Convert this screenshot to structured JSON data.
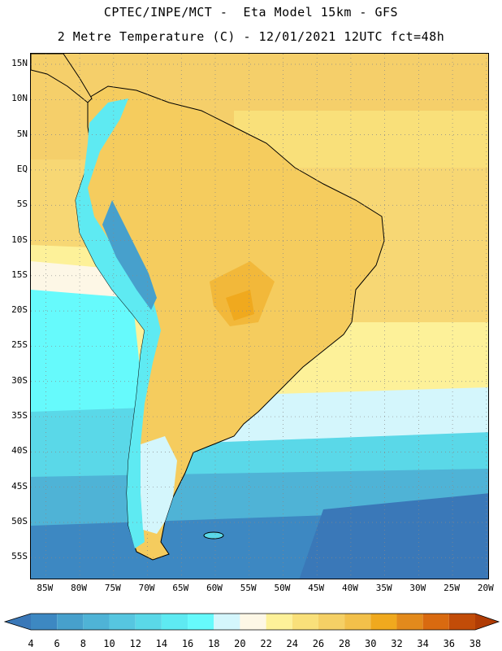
{
  "header": {
    "title_line1": "CPTEC/INPE/MCT -  Eta Model 15km - GFS",
    "title_line2": "2 Metre Temperature (C) - 12/01/2021 12UTC fct=48h"
  },
  "map": {
    "latitudes": [
      {
        "label": "15N",
        "value": 15
      },
      {
        "label": "10N",
        "value": 10
      },
      {
        "label": "5N",
        "value": 5
      },
      {
        "label": "EQ",
        "value": 0
      },
      {
        "label": "5S",
        "value": -5
      },
      {
        "label": "10S",
        "value": -10
      },
      {
        "label": "15S",
        "value": -15
      },
      {
        "label": "20S",
        "value": -20
      },
      {
        "label": "25S",
        "value": -25
      },
      {
        "label": "30S",
        "value": -30
      },
      {
        "label": "35S",
        "value": -35
      },
      {
        "label": "40S",
        "value": -40
      },
      {
        "label": "45S",
        "value": -45
      },
      {
        "label": "50S",
        "value": -50
      },
      {
        "label": "55S",
        "value": -55
      }
    ],
    "longitudes": [
      {
        "label": "85W",
        "value": -85
      },
      {
        "label": "80W",
        "value": -80
      },
      {
        "label": "75W",
        "value": -75
      },
      {
        "label": "70W",
        "value": -70
      },
      {
        "label": "65W",
        "value": -65
      },
      {
        "label": "60W",
        "value": -60
      },
      {
        "label": "55W",
        "value": -55
      },
      {
        "label": "50W",
        "value": -50
      },
      {
        "label": "45W",
        "value": -45
      },
      {
        "label": "40W",
        "value": -40
      },
      {
        "label": "35W",
        "value": -35
      },
      {
        "label": "30W",
        "value": -30
      },
      {
        "label": "25W",
        "value": -25
      },
      {
        "label": "20W",
        "value": -20
      }
    ]
  },
  "colorbar": {
    "labels": [
      "4",
      "6",
      "8",
      "10",
      "12",
      "14",
      "16",
      "18",
      "20",
      "22",
      "24",
      "26",
      "28",
      "30",
      "32",
      "34",
      "36",
      "38"
    ],
    "colors": [
      "#3a78b8",
      "#3d88c2",
      "#47a0cc",
      "#4fb3d6",
      "#56c6e0",
      "#5ad8e8",
      "#5eeaf2",
      "#66fafc",
      "#d4f6fc",
      "#fdf7e6",
      "#fdf199",
      "#f9e07a",
      "#f5d065",
      "#f2c04a",
      "#f0a91e",
      "#e38a1c",
      "#d96a10",
      "#c24c08",
      "#b03c05"
    ]
  }
}
